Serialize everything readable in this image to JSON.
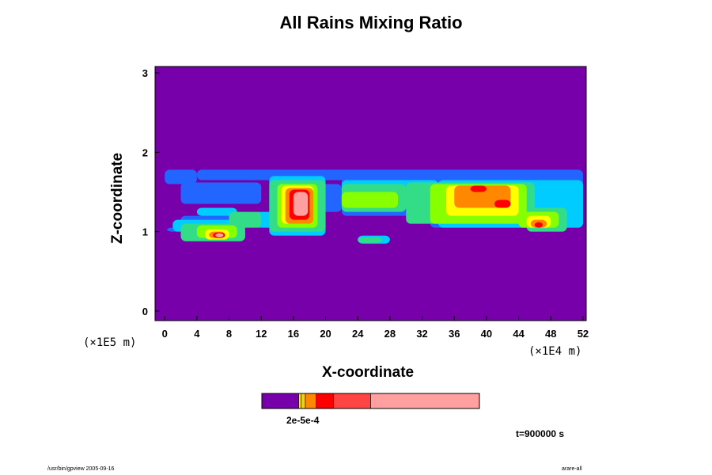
{
  "chart_data": {
    "type": "heatmap",
    "title": "All Rains Mixing Ratio",
    "xlabel": "X-coordinate",
    "ylabel": "Z-coordinate",
    "x_scale_note": "(×1E4 m)",
    "z_scale_note": "(×1E5 m)",
    "x_ticks": [
      "0",
      "4",
      "8",
      "12",
      "16",
      "20",
      "24",
      "28",
      "32",
      "36",
      "40",
      "44",
      "48",
      "52"
    ],
    "x_tick_values": [
      0,
      4,
      8,
      12,
      16,
      20,
      24,
      28,
      32,
      36,
      40,
      44,
      48,
      52
    ],
    "y_ticks": [
      "0",
      "1",
      "2",
      "3"
    ],
    "y_tick_values": [
      0,
      1,
      2,
      3
    ],
    "xlim": [
      -1.2,
      52.4
    ],
    "ylim": [
      -0.12,
      3.08
    ],
    "background_color": "#7700aa",
    "colorbar_label": "2e-5e-4",
    "colorbar": [
      {
        "from": 0.0,
        "to": 0.17,
        "color": "#7700aa"
      },
      {
        "from": 0.17,
        "to": 0.18,
        "color": "#ffff00"
      },
      {
        "from": 0.18,
        "to": 0.2,
        "color": "#ffcc00"
      },
      {
        "from": 0.2,
        "to": 0.25,
        "color": "#ff8800"
      },
      {
        "from": 0.25,
        "to": 0.33,
        "color": "#ff0000"
      },
      {
        "from": 0.33,
        "to": 0.5,
        "color": "#ff4444"
      },
      {
        "from": 0.5,
        "to": 1.0,
        "color": "#ffa0a0"
      }
    ],
    "bands": [
      {
        "color": "#2266ff",
        "cells": [
          [
            0.3,
            1.0,
            2,
            1.05
          ],
          [
            2,
            1.1,
            10,
            1.2
          ],
          [
            2,
            1.35,
            12,
            1.62
          ],
          [
            13,
            1.25,
            22,
            1.6
          ],
          [
            22,
            1.2,
            35,
            1.68
          ],
          [
            33,
            1.05,
            52,
            1.75
          ],
          [
            0,
            1.6,
            4,
            1.78
          ],
          [
            4,
            1.65,
            52,
            1.78
          ]
        ]
      },
      {
        "color": "#00ccff",
        "cells": [
          [
            1,
            1.0,
            9,
            1.15
          ],
          [
            3,
            0.9,
            10,
            1.05
          ],
          [
            4,
            1.2,
            9,
            1.3
          ],
          [
            11,
            1.05,
            14,
            1.25
          ],
          [
            13,
            0.95,
            20,
            1.7
          ],
          [
            22,
            1.3,
            34,
            1.65
          ],
          [
            34,
            1.05,
            52,
            1.65
          ],
          [
            24,
            0.85,
            28,
            0.95
          ]
        ]
      },
      {
        "color": "#33dd88",
        "cells": [
          [
            2,
            0.88,
            10,
            1.1
          ],
          [
            8,
            1.05,
            12,
            1.25
          ],
          [
            13,
            1.0,
            20,
            1.65
          ],
          [
            22,
            1.25,
            30,
            1.6
          ],
          [
            30,
            1.1,
            46,
            1.62
          ],
          [
            45,
            1.0,
            50,
            1.3
          ],
          [
            24,
            0.86,
            27,
            0.93
          ]
        ]
      },
      {
        "color": "#88ff00",
        "cells": [
          [
            4,
            0.92,
            9,
            1.08
          ],
          [
            14,
            1.05,
            19,
            1.6
          ],
          [
            22,
            1.3,
            29,
            1.5
          ],
          [
            33,
            1.1,
            45,
            1.6
          ],
          [
            44,
            1.05,
            49,
            1.25
          ]
        ]
      },
      {
        "color": "#ffff00",
        "cells": [
          [
            5,
            0.9,
            8,
            1.03
          ],
          [
            14.5,
            1.1,
            18.5,
            1.58
          ],
          [
            35,
            1.2,
            44,
            1.58
          ],
          [
            45,
            1.05,
            48,
            1.2
          ]
        ]
      },
      {
        "color": "#ff8800",
        "cells": [
          [
            5.5,
            0.92,
            7.5,
            1.0
          ],
          [
            15,
            1.1,
            18.5,
            1.55
          ],
          [
            36,
            1.3,
            43,
            1.58
          ],
          [
            45.5,
            1.05,
            47.5,
            1.15
          ]
        ]
      },
      {
        "color": "#ff0000",
        "cells": [
          [
            6,
            0.92,
            7.5,
            0.99
          ],
          [
            15.5,
            1.15,
            18,
            1.53
          ],
          [
            38,
            1.5,
            40,
            1.58
          ],
          [
            41,
            1.3,
            43,
            1.4
          ],
          [
            46,
            1.05,
            47,
            1.12
          ]
        ]
      },
      {
        "color": "#ffa0a0",
        "cells": [
          [
            6.3,
            0.93,
            7.3,
            0.98
          ],
          [
            16,
            1.2,
            17.8,
            1.5
          ]
        ]
      }
    ]
  },
  "time_label": "t=900000 s",
  "footer_left": "/usr/bin/gpview 2005-09-16",
  "footer_right": "arare-all"
}
